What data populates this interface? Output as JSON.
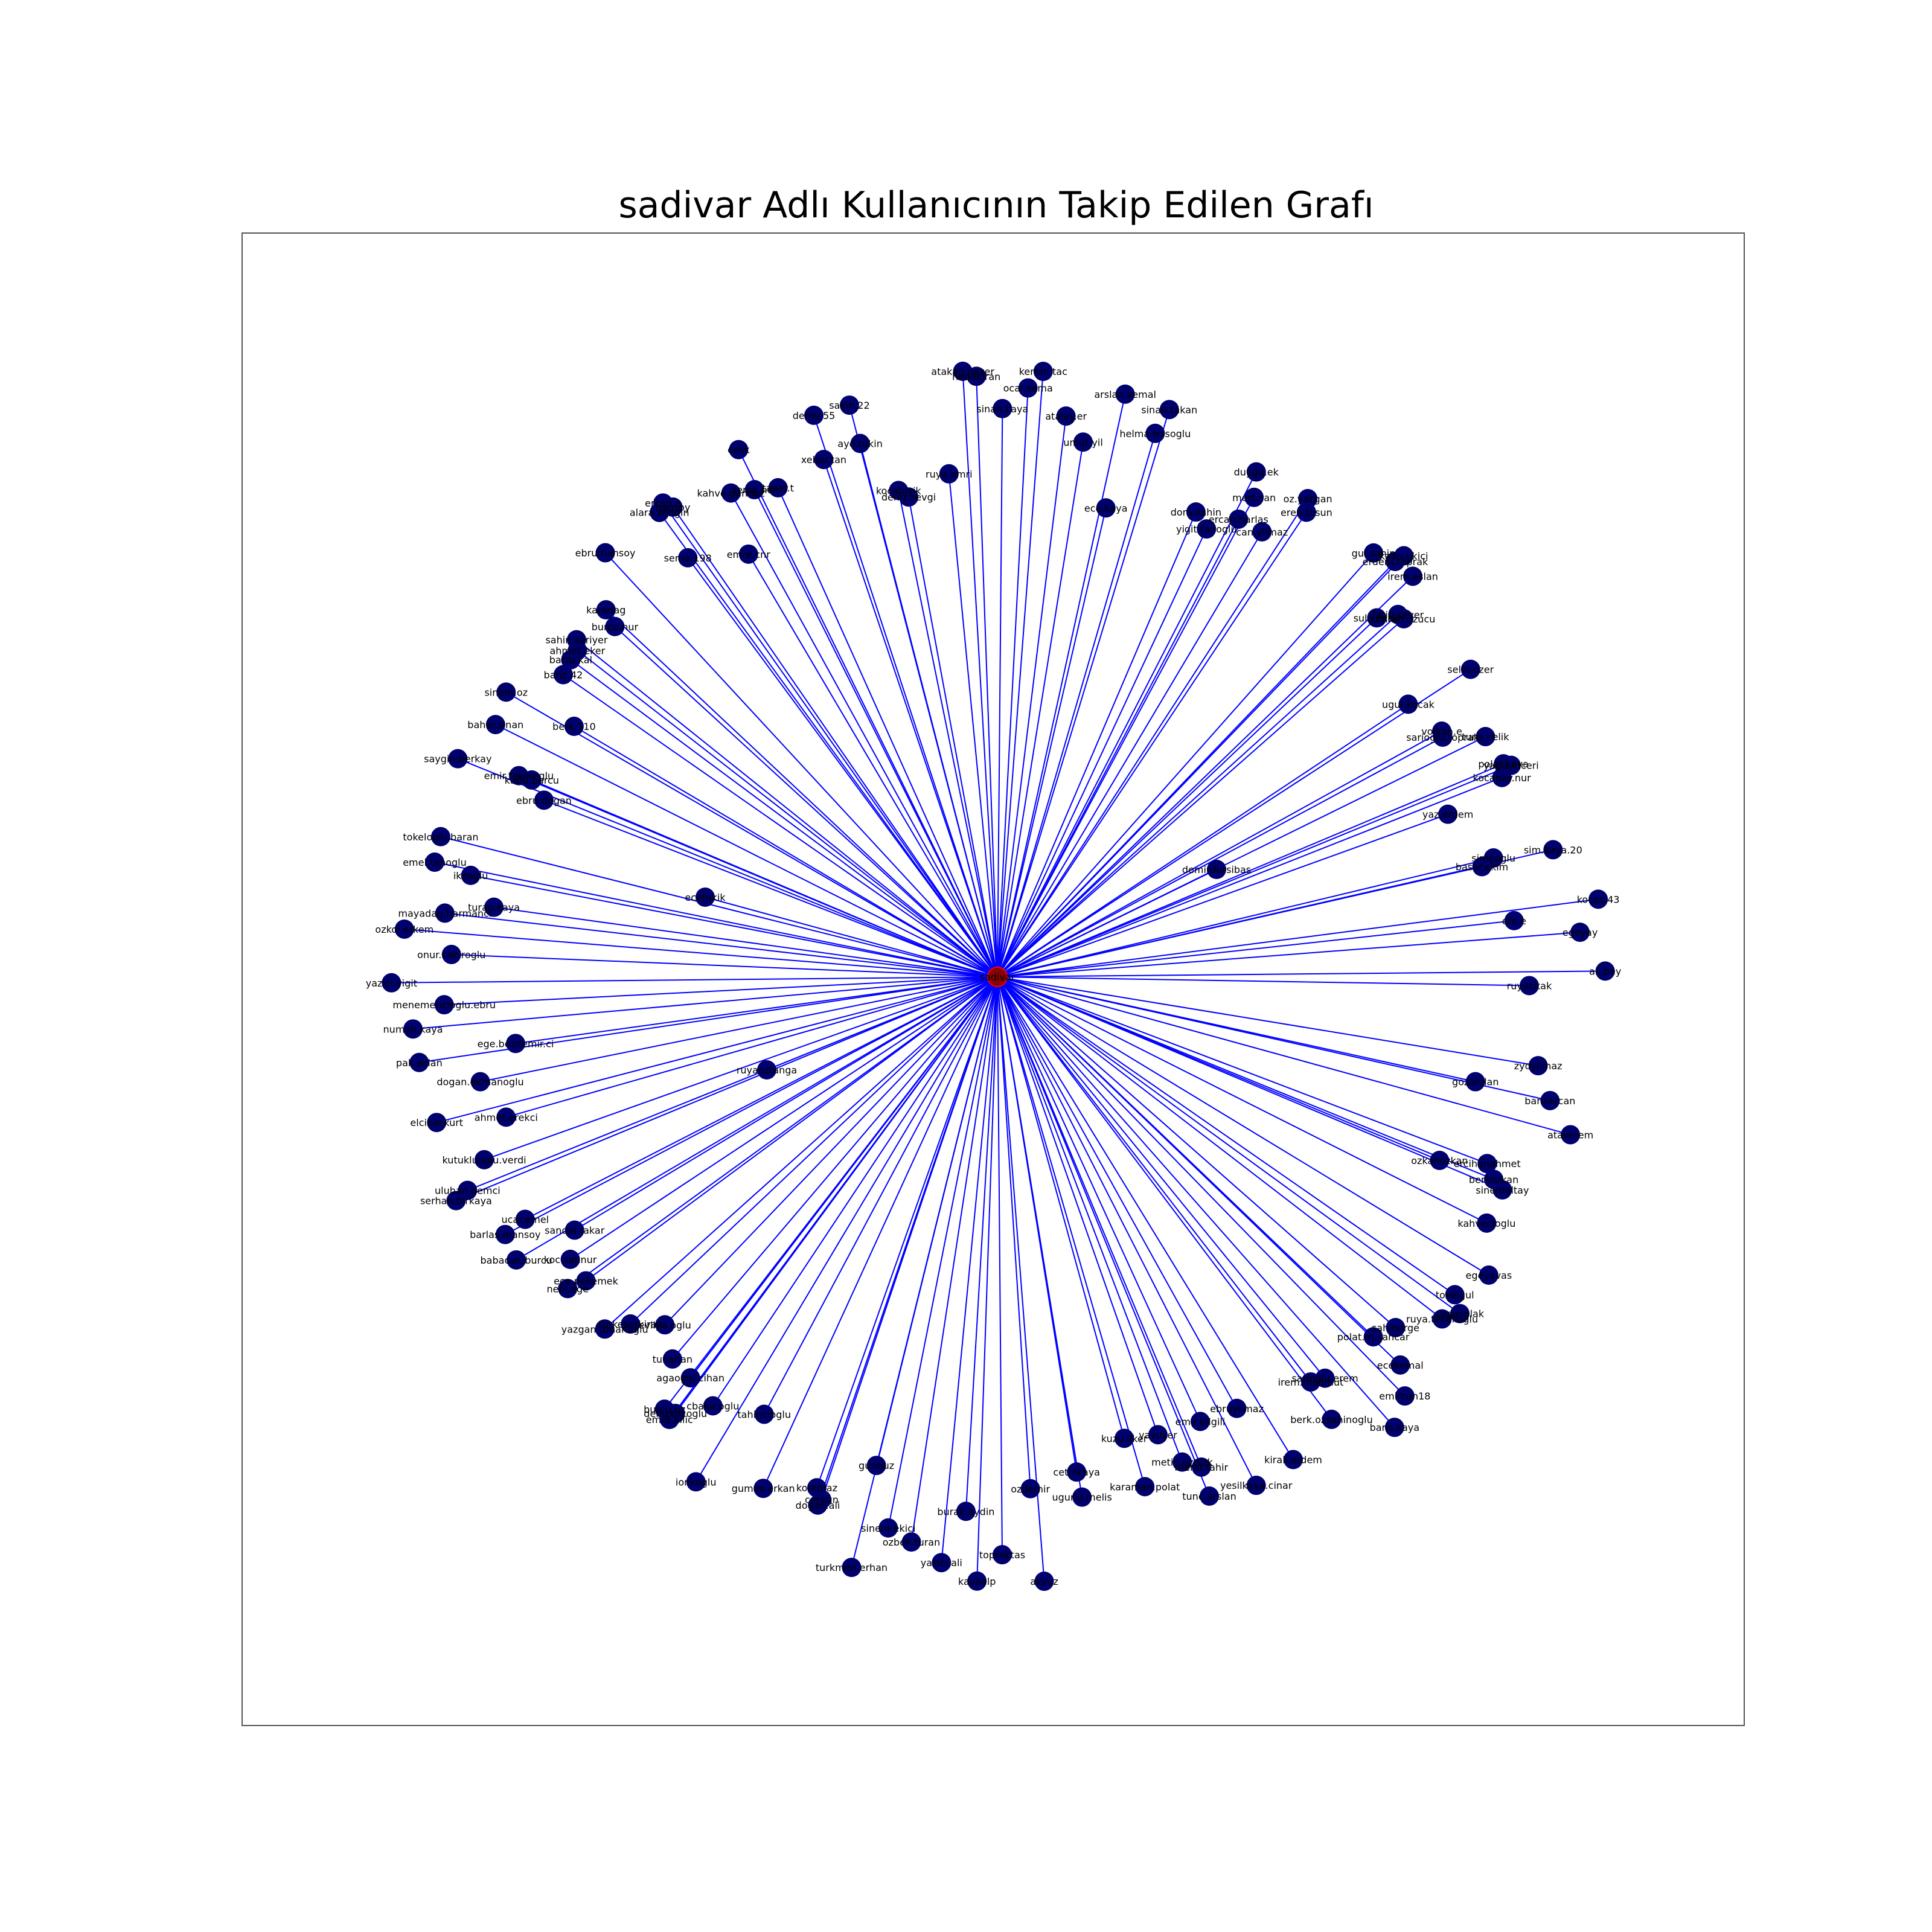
{
  "title": "sadivar Adlı Kullanıcının Takip Edilen Grafı",
  "colors": {
    "edge": "#0000ff",
    "node": "#00006e",
    "center": "#8b0000",
    "center_ring": "#ff0000"
  },
  "chart_data": {
    "type": "network",
    "layout": "star",
    "center": {
      "label": "sadivar"
    },
    "nodes": [
      "ruyacitak",
      "ecefukik",
      "demirdursibas",
      "ruyaoztanga",
      "zyoyilmaz",
      "gozarslan",
      "barisercan",
      "atakerem",
      "ercihanahmet",
      "sinemaltay",
      "ozkanozkan",
      "berkozkan",
      "kahvecioglu",
      "egeyavas",
      "tokelgul",
      "cagasolak",
      "ruya.tekelioglu",
      "polat.m.sancar",
      "ecekemal",
      "sahinerge",
      "emircan18",
      "baris.kaya",
      "sarioglu.erem",
      "berk.ozsahinoglu",
      "irem.mahmut",
      "kirali.erdem",
      "yesilkaya.cinar",
      "ebruyilmaz",
      "emir.bilgili",
      "meral.tahir",
      "tunc.arslan",
      "metin.ozturk",
      "yavuzer",
      "karaman.polat",
      "kuzu.ilker",
      "ugurlu.melis",
      "cetinkaya",
      "akyuz",
      "ozdemir",
      "topraktas",
      "kayaalp",
      "burak.aydin",
      "yazici.ali",
      "ozbek.turan",
      "sinem.ekici",
      "gunduz",
      "turkmen.erhan",
      "dogan.ali",
      "coskun",
      "korkmaz",
      "tahincioglu",
      "gumus.erkan",
      "cbakir.oglu",
      "ionkoglu",
      "emre.kilic",
      "denizkocoglu",
      "burcu.uz",
      "agaoglu.cihan",
      "tunahan",
      "evliya.oglu",
      "yazgan.tunanoglu",
      "turkeserkiran",
      "ece.pekemek",
      "babacan.burcu",
      "nebi.ege",
      "koc.sahnur",
      "sandal.takar",
      "barlas.mansoy",
      "ucar.emel",
      "serhan.birkaya",
      "uluhan.demci",
      "kutukluoglu.verdi",
      "elcibozkurt",
      "ahmet.erekci",
      "dogan.ekmanoglu",
      "pak.aslan",
      "ege.bozdemir.ci",
      "numan.kaya",
      "menemencioglu.ebru",
      "yazici.yigit",
      "onur.cakiroglu",
      "ozkol.erkem",
      "mayadag.harmanci",
      "turan.kaya",
      "ikeoglu",
      "emel.tanoglu",
      "tokeloglu.baran",
      "ebru.dogan",
      "kutlu.burcu",
      "saygin.berkay",
      "emir.tekeroglu",
      "bahar.sinan",
      "berk.110",
      "baris.42",
      "sinem.oz",
      "sahin.sariyer",
      "ahmet.eker",
      "bartu.kal",
      "karadag",
      "ebrumansoy",
      "burcu.nur",
      "sema.198",
      "ercan.e",
      "hansoy",
      "alara.zengin",
      "emre.cnr",
      "celik",
      "kahve.gunduz",
      "sema.nur",
      "taner.t",
      "demir.55",
      "xeber.tan",
      "sakin.22",
      "ayd.tekin",
      "deniz.sevgi",
      "kocabiyik",
      "ruya.emri",
      "atakan.nazer",
      "nedekiran",
      "sinan.kaya",
      "ocar.sema",
      "kerem.tac",
      "atalay.er",
      "umut.yil",
      "ece.kaya",
      "arslan.kemal",
      "helma.nusoglu",
      "sinan.takan",
      "dora.sahin",
      "yigit.tanoglu",
      "ercan.barlas",
      "can.yilmaz",
      "mert.can",
      "duygu.ek",
      "oz.yazgan",
      "eren.tosun",
      "gul.sahin",
      "erdem.toprak",
      "irem.aslan",
      "kaan.ekici",
      "umran.ozucu",
      "sule.cabir",
      "fatih.sever",
      "ugur.kocak",
      "selin.ozer",
      "volkan.e",
      "tuna.celik",
      "sarioglu.toprak",
      "yagiz.inceri",
      "polat.kaya",
      "kocabay.nur",
      "yaz.erdem",
      "sim.kaya.20",
      "simeoglu",
      "basar.ekim",
      "kocas.43",
      "efe.e",
      "egeyay",
      "ali.bey"
    ]
  }
}
